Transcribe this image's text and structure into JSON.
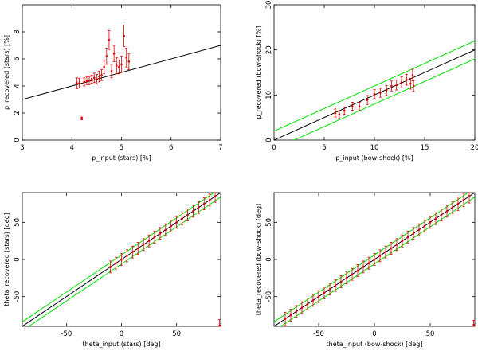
{
  "figure": {
    "colors": {
      "axis": "#000000",
      "fit": "#000000",
      "band": "#00e000",
      "points": "#e00000"
    }
  },
  "chart_data": [
    {
      "type": "scatter",
      "xlabel": "p_input (stars) [%]",
      "ylabel": "p_recovered (stars) [%]",
      "xlim": [
        3,
        7
      ],
      "ylim": [
        0,
        10
      ],
      "xticks": [
        3,
        4,
        5,
        6,
        7
      ],
      "yticks": [
        0,
        2,
        4,
        6,
        8
      ],
      "xtick_labels": [
        "3",
        "4",
        "5",
        "6",
        "7"
      ],
      "ytick_labels": [
        "0",
        "2",
        "4",
        "6",
        "8"
      ],
      "fit_line": {
        "slope": 1,
        "intercept": 0
      },
      "band": null,
      "points": [
        {
          "x": 4.1,
          "y": 4.2,
          "err": 0.4
        },
        {
          "x": 4.15,
          "y": 4.2,
          "err": 0.35
        },
        {
          "x": 4.2,
          "y": 1.6,
          "err": 0.1
        },
        {
          "x": 4.25,
          "y": 4.3,
          "err": 0.3
        },
        {
          "x": 4.3,
          "y": 4.4,
          "err": 0.3
        },
        {
          "x": 4.35,
          "y": 4.4,
          "err": 0.3
        },
        {
          "x": 4.4,
          "y": 4.5,
          "err": 0.3
        },
        {
          "x": 4.45,
          "y": 4.6,
          "err": 0.35
        },
        {
          "x": 4.5,
          "y": 4.5,
          "err": 0.35
        },
        {
          "x": 4.55,
          "y": 4.7,
          "err": 0.4
        },
        {
          "x": 4.6,
          "y": 4.8,
          "err": 0.4
        },
        {
          "x": 4.65,
          "y": 5.4,
          "err": 0.5
        },
        {
          "x": 4.7,
          "y": 6.2,
          "err": 0.6
        },
        {
          "x": 4.75,
          "y": 7.4,
          "err": 0.7
        },
        {
          "x": 4.8,
          "y": 5.1,
          "err": 0.5
        },
        {
          "x": 4.85,
          "y": 6.4,
          "err": 0.6
        },
        {
          "x": 4.9,
          "y": 5.5,
          "err": 0.6
        },
        {
          "x": 4.95,
          "y": 5.4,
          "err": 0.5
        },
        {
          "x": 5.0,
          "y": 5.6,
          "err": 0.6
        },
        {
          "x": 5.05,
          "y": 7.7,
          "err": 0.8
        },
        {
          "x": 5.1,
          "y": 6.1,
          "err": 0.7
        },
        {
          "x": 5.15,
          "y": 5.8,
          "err": 0.6
        }
      ]
    },
    {
      "type": "scatter",
      "xlabel": "p_input (bow-shock) [%]",
      "ylabel": "p_recovered (bow-shock) [%]",
      "xlim": [
        0,
        20
      ],
      "ylim": [
        0,
        30
      ],
      "xticks": [
        0,
        5,
        10,
        15,
        20
      ],
      "yticks": [
        0,
        10,
        20,
        30
      ],
      "xtick_labels": [
        "0",
        "5",
        "10",
        "15",
        "20"
      ],
      "ytick_labels": [
        "0",
        "10",
        "20",
        "30"
      ],
      "fit_line": {
        "slope": 1,
        "intercept": 0
      },
      "band": {
        "offset": 2
      },
      "points": [
        {
          "x": 6.1,
          "y": 6.0,
          "err": 0.9
        },
        {
          "x": 6.5,
          "y": 5.7,
          "err": 0.8
        },
        {
          "x": 7.0,
          "y": 6.5,
          "err": 0.8
        },
        {
          "x": 7.8,
          "y": 7.5,
          "err": 0.9
        },
        {
          "x": 8.5,
          "y": 7.5,
          "err": 0.9
        },
        {
          "x": 9.3,
          "y": 8.9,
          "err": 1.0
        },
        {
          "x": 10.0,
          "y": 10.2,
          "err": 1.0
        },
        {
          "x": 10.6,
          "y": 10.5,
          "err": 1.0
        },
        {
          "x": 11.2,
          "y": 11.0,
          "err": 1.1
        },
        {
          "x": 11.7,
          "y": 12.0,
          "err": 1.1
        },
        {
          "x": 12.2,
          "y": 12.2,
          "err": 1.1
        },
        {
          "x": 12.7,
          "y": 12.8,
          "err": 1.2
        },
        {
          "x": 13.2,
          "y": 13.4,
          "err": 1.2
        },
        {
          "x": 13.6,
          "y": 12.5,
          "err": 1.2
        },
        {
          "x": 13.8,
          "y": 14.4,
          "err": 1.3
        },
        {
          "x": 13.9,
          "y": 12.0,
          "err": 1.2
        }
      ]
    },
    {
      "type": "scatter",
      "xlabel": "theta_input (stars) [deg]",
      "ylabel": "theta_recovered (stars) [deg]",
      "xlim": [
        -90,
        90
      ],
      "ylim": [
        -90,
        90
      ],
      "xticks": [
        -50,
        0,
        50
      ],
      "yticks": [
        -50,
        0,
        50
      ],
      "xtick_labels": [
        "-50",
        "0",
        "50"
      ],
      "ytick_labels": [
        "-50",
        "0",
        "50"
      ],
      "fit_line": {
        "slope": 1,
        "intercept": 0
      },
      "band": {
        "offset": 6
      },
      "points": [
        {
          "x": -10,
          "y": -10,
          "err": 8
        },
        {
          "x": -5,
          "y": -5,
          "err": 8
        },
        {
          "x": 0,
          "y": 0,
          "err": 8
        },
        {
          "x": 5,
          "y": 5,
          "err": 8
        },
        {
          "x": 10,
          "y": 10,
          "err": 8
        },
        {
          "x": 15,
          "y": 15,
          "err": 8
        },
        {
          "x": 20,
          "y": 20,
          "err": 8
        },
        {
          "x": 25,
          "y": 25,
          "err": 8
        },
        {
          "x": 30,
          "y": 30,
          "err": 8
        },
        {
          "x": 35,
          "y": 35,
          "err": 8
        },
        {
          "x": 40,
          "y": 40,
          "err": 8
        },
        {
          "x": 45,
          "y": 45,
          "err": 8
        },
        {
          "x": 50,
          "y": 50,
          "err": 8
        },
        {
          "x": 55,
          "y": 55,
          "err": 8
        },
        {
          "x": 60,
          "y": 60,
          "err": 8
        },
        {
          "x": 65,
          "y": 65,
          "err": 8
        },
        {
          "x": 70,
          "y": 70,
          "err": 8
        },
        {
          "x": 75,
          "y": 75,
          "err": 8
        },
        {
          "x": 80,
          "y": 80,
          "err": 8
        },
        {
          "x": 85,
          "y": 85,
          "err": 8
        },
        {
          "x": 89,
          "y": -89,
          "err": 8
        }
      ]
    },
    {
      "type": "scatter",
      "xlabel": "theta_input (bow-shock) [deg]",
      "ylabel": "theta_recovered (bow-shock) [deg]",
      "xlim": [
        -90,
        90
      ],
      "ylim": [
        -90,
        90
      ],
      "xticks": [
        -50,
        0,
        50
      ],
      "yticks": [
        -50,
        0,
        50
      ],
      "xtick_labels": [
        "-50",
        "0",
        "50"
      ],
      "ytick_labels": [
        "-50",
        "0",
        "50"
      ],
      "fit_line": {
        "slope": 1,
        "intercept": 0
      },
      "band": {
        "offset": 6
      },
      "points": [
        {
          "x": -80,
          "y": -80,
          "err": 9
        },
        {
          "x": -75,
          "y": -75,
          "err": 8
        },
        {
          "x": -70,
          "y": -70,
          "err": 8
        },
        {
          "x": -65,
          "y": -65,
          "err": 8
        },
        {
          "x": -60,
          "y": -60,
          "err": 8
        },
        {
          "x": -55,
          "y": -55,
          "err": 8
        },
        {
          "x": -50,
          "y": -50,
          "err": 8
        },
        {
          "x": -45,
          "y": -45,
          "err": 8
        },
        {
          "x": -40,
          "y": -40,
          "err": 8
        },
        {
          "x": -35,
          "y": -35,
          "err": 8
        },
        {
          "x": -30,
          "y": -30,
          "err": 8
        },
        {
          "x": -25,
          "y": -25,
          "err": 8
        },
        {
          "x": -20,
          "y": -20,
          "err": 8
        },
        {
          "x": -15,
          "y": -15,
          "err": 8
        },
        {
          "x": -10,
          "y": -10,
          "err": 8
        },
        {
          "x": -5,
          "y": -5,
          "err": 8
        },
        {
          "x": 0,
          "y": 0,
          "err": 8
        },
        {
          "x": 5,
          "y": 5,
          "err": 8
        },
        {
          "x": 10,
          "y": 10,
          "err": 8
        },
        {
          "x": 15,
          "y": 15,
          "err": 8
        },
        {
          "x": 20,
          "y": 20,
          "err": 8
        },
        {
          "x": 25,
          "y": 25,
          "err": 8
        },
        {
          "x": 30,
          "y": 30,
          "err": 8
        },
        {
          "x": 35,
          "y": 35,
          "err": 8
        },
        {
          "x": 40,
          "y": 40,
          "err": 8
        },
        {
          "x": 45,
          "y": 45,
          "err": 8
        },
        {
          "x": 50,
          "y": 50,
          "err": 8
        },
        {
          "x": 55,
          "y": 55,
          "err": 8
        },
        {
          "x": 60,
          "y": 60,
          "err": 8
        },
        {
          "x": 65,
          "y": 65,
          "err": 8
        },
        {
          "x": 70,
          "y": 70,
          "err": 8
        },
        {
          "x": 75,
          "y": 75,
          "err": 9
        },
        {
          "x": 80,
          "y": 80,
          "err": 9
        },
        {
          "x": 85,
          "y": 85,
          "err": 9
        },
        {
          "x": 89,
          "y": -88,
          "err": 6
        }
      ]
    }
  ]
}
